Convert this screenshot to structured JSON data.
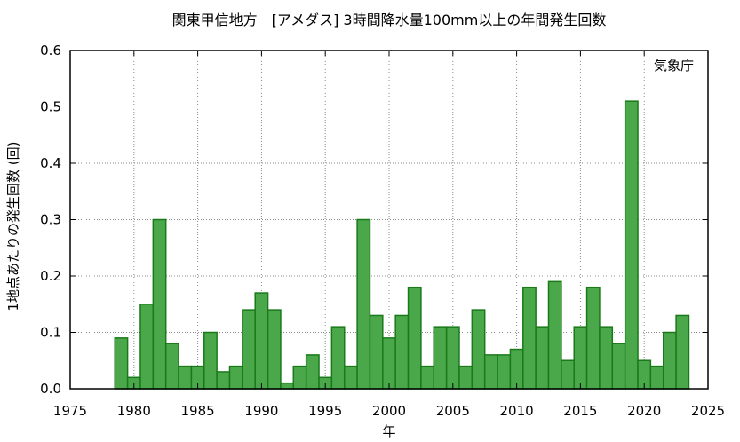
{
  "chart_data": {
    "type": "bar",
    "title": "関東甲信地方　[アメダス] 3時間降水量100mm以上の年間発生回数",
    "xlabel": "年",
    "ylabel": "1地点あたりの発生回数 (回)",
    "annotation": "気象庁",
    "xlim": [
      1975,
      2025
    ],
    "ylim": [
      0,
      0.6
    ],
    "x_ticks": [
      "1975",
      "1980",
      "1985",
      "1990",
      "1995",
      "2000",
      "2005",
      "2010",
      "2015",
      "2020",
      "2025"
    ],
    "y_ticks": [
      "0.0",
      "0.1",
      "0.2",
      "0.3",
      "0.4",
      "0.5",
      "0.6"
    ],
    "grid": true,
    "bar_color": "#4aa84a",
    "bar_edge_color": "#1a7a1a",
    "years": [
      1979,
      1980,
      1981,
      1982,
      1983,
      1984,
      1985,
      1986,
      1987,
      1988,
      1989,
      1990,
      1991,
      1992,
      1993,
      1994,
      1995,
      1996,
      1997,
      1998,
      1999,
      2000,
      2001,
      2002,
      2003,
      2004,
      2005,
      2006,
      2007,
      2008,
      2009,
      2010,
      2011,
      2012,
      2013,
      2014,
      2015,
      2016,
      2017,
      2018,
      2019,
      2020,
      2021,
      2022,
      2023
    ],
    "values": [
      0.09,
      0.02,
      0.15,
      0.3,
      0.08,
      0.04,
      0.04,
      0.1,
      0.03,
      0.04,
      0.14,
      0.17,
      0.14,
      0.01,
      0.04,
      0.06,
      0.02,
      0.11,
      0.04,
      0.3,
      0.13,
      0.09,
      0.13,
      0.18,
      0.04,
      0.11,
      0.11,
      0.04,
      0.14,
      0.06,
      0.06,
      0.07,
      0.18,
      0.11,
      0.19,
      0.05,
      0.11,
      0.18,
      0.11,
      0.08,
      0.51,
      0.05,
      0.04,
      0.1,
      0.13
    ]
  }
}
